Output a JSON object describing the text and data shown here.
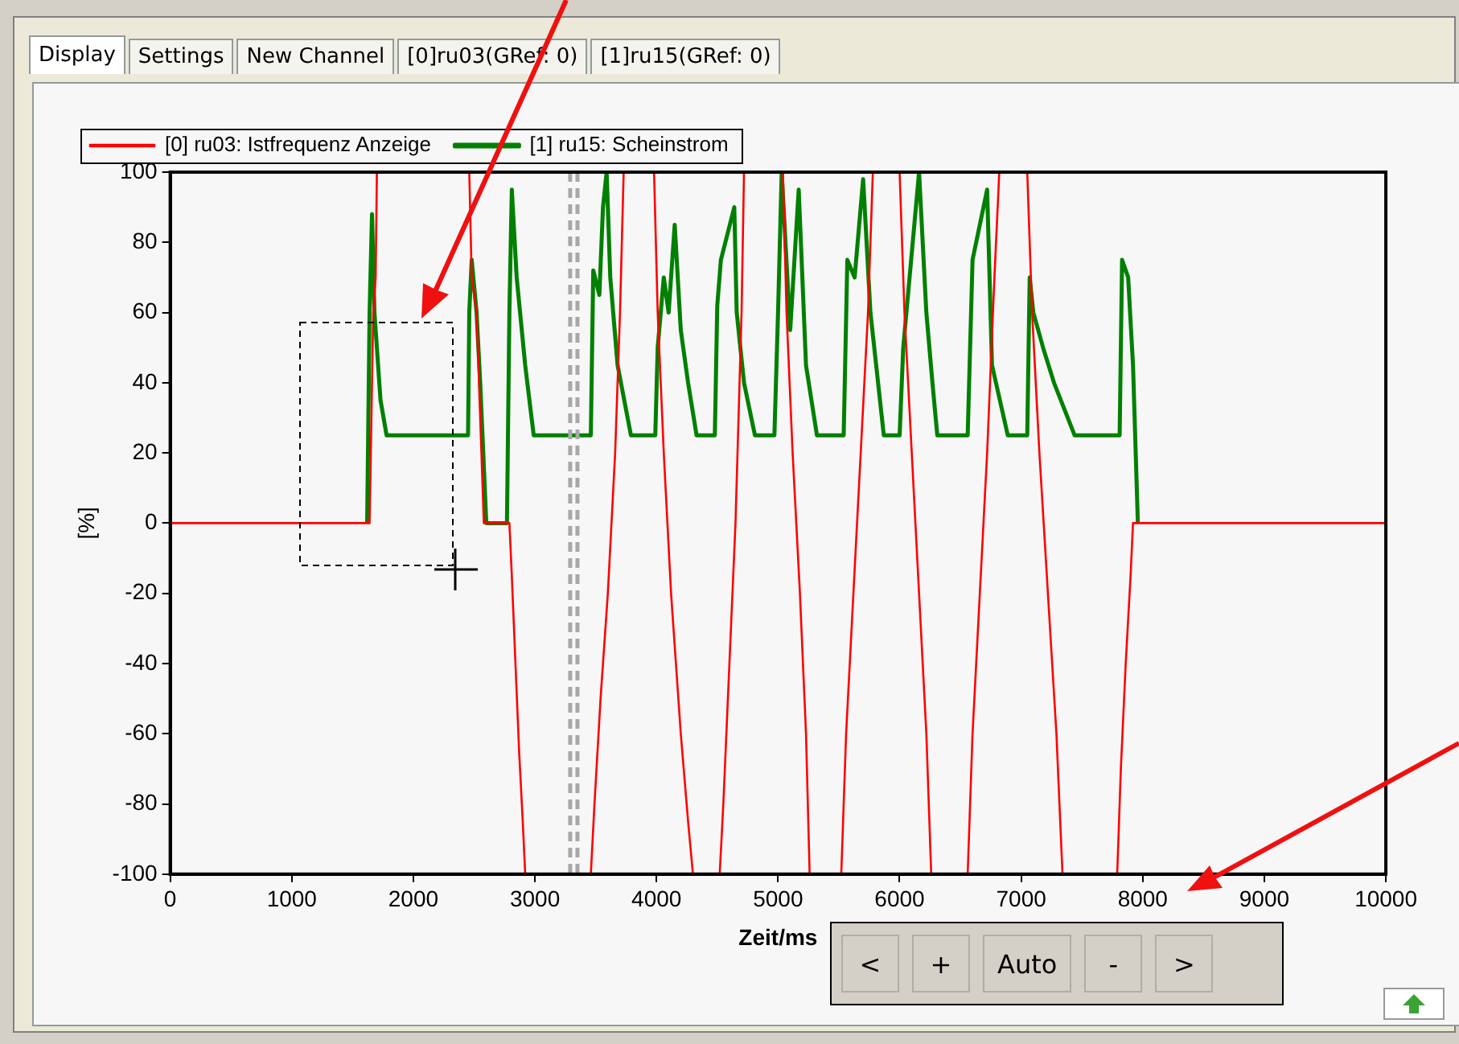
{
  "chart_data": {
    "type": "line",
    "xlabel": "Zeit/ms",
    "ylabel": "[%]",
    "xlim": [
      0,
      10000
    ],
    "xticks": [
      0,
      1000,
      2000,
      3000,
      4000,
      5000,
      6000,
      7000,
      8000,
      9000,
      10000
    ],
    "ylim": [
      -100,
      100
    ],
    "yticks": [
      -100,
      -80,
      -60,
      -40,
      -20,
      0,
      20,
      40,
      60,
      80,
      100
    ],
    "legend": "top",
    "grid": false,
    "series": [
      {
        "name": "[0] ru03: Istfrequenz Anzeige",
        "color": "#ff0000",
        "x": [
          0,
          1640,
          1650,
          1670,
          1690,
          1700,
          2460,
          2480,
          2520,
          2560,
          2580,
          2790,
          2810,
          2840,
          2870,
          2900,
          2920,
          3460,
          3490,
          3540,
          3600,
          3660,
          3700,
          3730,
          3980,
          4010,
          4060,
          4120,
          4200,
          4260,
          4300,
          4520,
          4550,
          4600,
          4650,
          4700,
          4720,
          5040,
          5070,
          5120,
          5180,
          5230,
          5260,
          5520,
          5560,
          5620,
          5680,
          5740,
          5780,
          6000,
          6040,
          6100,
          6160,
          6220,
          6260,
          6560,
          6600,
          6660,
          6720,
          6780,
          6820,
          7050,
          7090,
          7150,
          7220,
          7290,
          7340,
          7790,
          7820,
          7860,
          7900,
          7920,
          10000
        ],
        "values": [
          0,
          0,
          20,
          60,
          70,
          100,
          100,
          70,
          60,
          20,
          0,
          0,
          -15,
          -40,
          -65,
          -85,
          -100,
          -100,
          -80,
          -50,
          -20,
          20,
          60,
          100,
          100,
          60,
          20,
          -20,
          -60,
          -85,
          -100,
          -100,
          -80,
          -40,
          0,
          60,
          100,
          100,
          60,
          20,
          -20,
          -60,
          -100,
          -100,
          -60,
          -20,
          20,
          60,
          100,
          100,
          60,
          20,
          -20,
          -60,
          -100,
          -100,
          -60,
          -20,
          20,
          70,
          100,
          100,
          60,
          20,
          -20,
          -60,
          -100,
          -100,
          -70,
          -40,
          -15,
          0,
          0
        ]
      },
      {
        "name": "[1] ru15: Scheinstrom",
        "color": "#008000",
        "x": [
          1620,
          1640,
          1660,
          1680,
          1730,
          1780,
          2450,
          2460,
          2480,
          2520,
          2550,
          2600,
          2770,
          2790,
          2810,
          2850,
          2920,
          2990,
          3460,
          3480,
          3530,
          3560,
          3590,
          3620,
          3680,
          3790,
          3990,
          4010,
          4060,
          4100,
          4150,
          4200,
          4260,
          4330,
          4480,
          4500,
          4530,
          4640,
          4660,
          4720,
          4810,
          4970,
          5000,
          5030,
          5100,
          5170,
          5230,
          5320,
          5540,
          5570,
          5630,
          5700,
          5760,
          5870,
          6000,
          6030,
          6160,
          6220,
          6270,
          6310,
          6560,
          6600,
          6720,
          6760,
          6890,
          7050,
          7070,
          7100,
          7180,
          7270,
          7440,
          7810,
          7830,
          7880,
          7920,
          7960
        ],
        "values": [
          0,
          60,
          88,
          60,
          35,
          25,
          25,
          60,
          75,
          60,
          40,
          0,
          0,
          60,
          95,
          70,
          45,
          25,
          25,
          72,
          65,
          90,
          100,
          70,
          45,
          25,
          25,
          50,
          70,
          60,
          85,
          55,
          40,
          25,
          25,
          62,
          75,
          90,
          60,
          40,
          25,
          25,
          60,
          100,
          55,
          95,
          45,
          25,
          25,
          75,
          70,
          98,
          60,
          25,
          25,
          50,
          100,
          60,
          40,
          25,
          25,
          75,
          95,
          45,
          25,
          25,
          70,
          60,
          50,
          40,
          25,
          25,
          75,
          70,
          45,
          0
        ]
      }
    ],
    "ref_lines": [
      {
        "axis": "x",
        "value": 3290,
        "color": "#a8a8a8",
        "line_style": "dashed"
      },
      {
        "axis": "x",
        "value": 3350,
        "color": "#a8a8a8",
        "line_style": "dashed"
      }
    ],
    "annotations": [
      "Display",
      "Settings",
      "New Channel",
      "[0]ru03(GRef: 0)",
      "[1]ru15(GRef: 0)",
      "<",
      "+",
      "Auto",
      "-",
      ">"
    ]
  }
}
